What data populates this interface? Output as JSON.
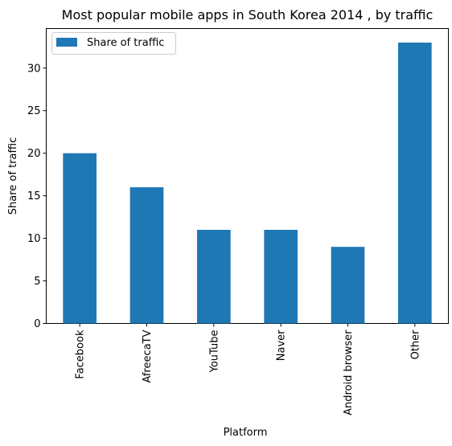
{
  "chart_data": {
    "type": "bar",
    "title": "Most popular mobile apps in South Korea 2014 , by traffic",
    "xlabel": "Platform",
    "ylabel": "Share of traffic",
    "categories": [
      "Facebook",
      "AfreecaTV",
      "YouTube",
      "Naver",
      "Android browser",
      "Other"
    ],
    "series": [
      {
        "name": "Share of traffic",
        "values": [
          20,
          16,
          11,
          11,
          9,
          33
        ]
      }
    ],
    "ylim": [
      0,
      34.65
    ],
    "yticks": [
      0,
      5,
      10,
      15,
      20,
      25,
      30
    ],
    "grid": false,
    "legend": "top-left",
    "bar_color": "#1f77b4"
  }
}
